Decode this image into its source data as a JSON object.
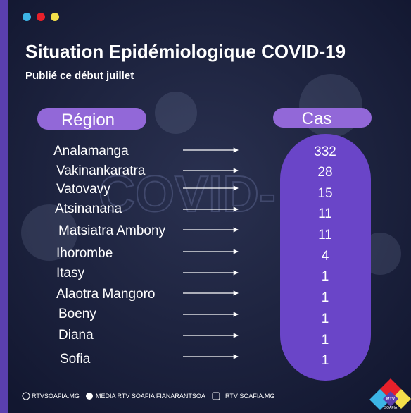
{
  "header": {
    "title": "Situation Epidémiologique COVID-19",
    "subtitle": "Publié  ce début juillet"
  },
  "watermark": "COVID-",
  "table": {
    "columns": [
      "Région",
      "Cas"
    ],
    "rows": [
      [
        "Analamanga",
        332
      ],
      [
        "Vakinankaratra",
        28
      ],
      [
        "Vatovavy",
        15
      ],
      [
        "Atsinanana",
        11
      ],
      [
        "Matsiatra Ambony",
        11
      ],
      [
        "Ihorombe",
        4
      ],
      [
        "Itasy",
        1
      ],
      [
        "Alaotra Mangoro",
        1
      ],
      [
        "Boeny",
        1
      ],
      [
        "Diana",
        1
      ],
      [
        "Sofia",
        1
      ]
    ]
  },
  "footer": {
    "links": [
      "RTVSOAFIA.MG",
      "MEDIA RTV SOAFIA FIANARANTSOA",
      "RTV SOAFIA.MG"
    ],
    "logo": [
      "RTV",
      "SOAFIA"
    ]
  }
}
